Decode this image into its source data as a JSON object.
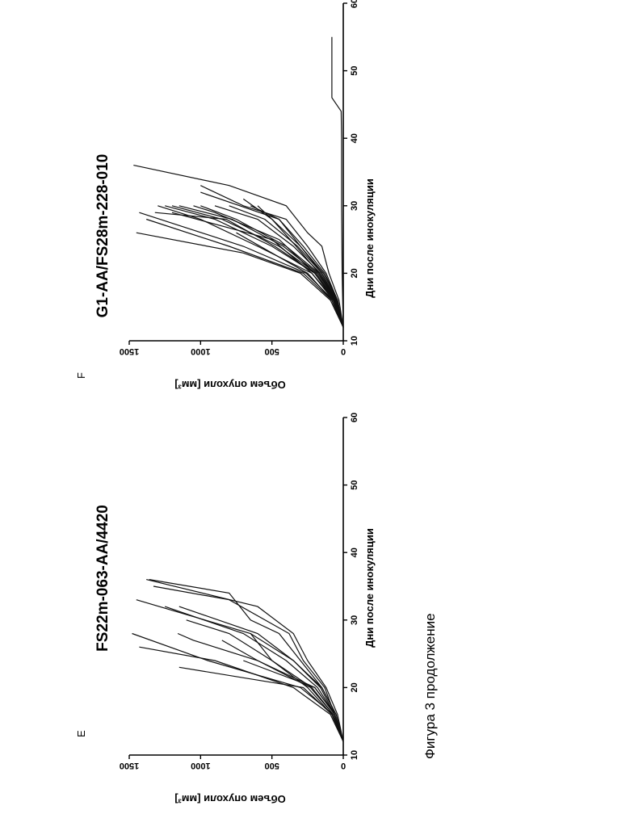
{
  "figure": {
    "caption": "Фигура 3 продолжение"
  },
  "chart_data": [
    {
      "type": "line",
      "panel_label": "E",
      "title": "FS22m-063-AA/4420",
      "xlabel": "Дни после инокуляции",
      "ylabel": "Объем опухоли [мм³]",
      "xlim": [
        10,
        60
      ],
      "ylim": [
        0,
        1500
      ],
      "xticks": [
        "10",
        "20",
        "30",
        "40",
        "50",
        "60"
      ],
      "yticks": [
        "0",
        "500",
        "1000",
        "1500"
      ],
      "grid": false,
      "series": [
        {
          "x": [
            12,
            16,
            20,
            23
          ],
          "y": [
            0,
            80,
            280,
            1150
          ]
        },
        {
          "x": [
            12,
            16,
            20,
            24,
            26
          ],
          "y": [
            0,
            90,
            350,
            900,
            1430
          ]
        },
        {
          "x": [
            12,
            16,
            20,
            24,
            28
          ],
          "y": [
            0,
            70,
            300,
            950,
            1480
          ]
        },
        {
          "x": [
            12,
            16,
            20,
            24,
            27,
            28
          ],
          "y": [
            0,
            60,
            200,
            600,
            1050,
            1160
          ]
        },
        {
          "x": [
            12,
            16,
            20,
            24,
            28,
            30
          ],
          "y": [
            0,
            70,
            220,
            500,
            800,
            1100
          ]
        },
        {
          "x": [
            12,
            16,
            20,
            24,
            28,
            32
          ],
          "y": [
            0,
            60,
            180,
            400,
            700,
            1250
          ]
        },
        {
          "x": [
            12,
            16,
            20,
            24,
            28,
            33
          ],
          "y": [
            0,
            50,
            150,
            350,
            650,
            1450
          ]
        },
        {
          "x": [
            12,
            16,
            20,
            24,
            28,
            32,
            36
          ],
          "y": [
            0,
            40,
            120,
            250,
            350,
            600,
            1380
          ]
        },
        {
          "x": [
            12,
            16,
            20,
            24,
            28,
            30,
            34,
            36
          ],
          "y": [
            0,
            50,
            150,
            300,
            450,
            650,
            800,
            1360
          ]
        },
        {
          "x": [
            12,
            16,
            20,
            24,
            28,
            33,
            35
          ],
          "y": [
            0,
            60,
            130,
            280,
            380,
            800,
            1330
          ]
        },
        {
          "x": [
            12,
            16,
            20,
            24,
            28,
            32
          ],
          "y": [
            0,
            60,
            160,
            350,
            600,
            1150
          ]
        },
        {
          "x": [
            12,
            16,
            20,
            24,
            28
          ],
          "y": [
            0,
            80,
            250,
            500,
            650
          ]
        },
        {
          "x": [
            12,
            16,
            20,
            24,
            27
          ],
          "y": [
            0,
            70,
            230,
            600,
            850
          ]
        },
        {
          "x": [
            12,
            16,
            20,
            24
          ],
          "y": [
            0,
            60,
            200,
            700
          ]
        }
      ]
    },
    {
      "type": "line",
      "panel_label": "F",
      "title": "G1-AA/FS28m-228-010",
      "xlabel": "Дни после инокуляции",
      "ylabel": "Объем опухоли [мм³]",
      "xlim": [
        10,
        60
      ],
      "ylim": [
        0,
        1500
      ],
      "xticks": [
        "10",
        "20",
        "30",
        "40",
        "50",
        "60"
      ],
      "yticks": [
        "0",
        "500",
        "1000",
        "1500"
      ],
      "grid": false,
      "series": [
        {
          "x": [
            12,
            16,
            20,
            23,
            26
          ],
          "y": [
            0,
            90,
            300,
            700,
            1450
          ]
        },
        {
          "x": [
            12,
            16,
            20,
            24,
            28
          ],
          "y": [
            0,
            80,
            280,
            800,
            1380
          ]
        },
        {
          "x": [
            12,
            16,
            20,
            24,
            29
          ],
          "y": [
            0,
            70,
            260,
            700,
            1430
          ]
        },
        {
          "x": [
            12,
            16,
            20,
            24,
            28,
            30
          ],
          "y": [
            0,
            60,
            220,
            600,
            1000,
            1300
          ]
        },
        {
          "x": [
            12,
            16,
            20,
            24,
            28,
            30
          ],
          "y": [
            0,
            60,
            200,
            500,
            900,
            1250
          ]
        },
        {
          "x": [
            12,
            16,
            20,
            24,
            28,
            30
          ],
          "y": [
            0,
            55,
            190,
            450,
            850,
            1200
          ]
        },
        {
          "x": [
            12,
            16,
            20,
            24,
            28,
            30
          ],
          "y": [
            0,
            50,
            180,
            420,
            780,
            1150
          ]
        },
        {
          "x": [
            12,
            16,
            20,
            24,
            28,
            30
          ],
          "y": [
            0,
            50,
            170,
            400,
            750,
            1000
          ]
        },
        {
          "x": [
            12,
            16,
            20,
            24,
            28,
            29
          ],
          "y": [
            0,
            60,
            200,
            480,
            820,
            1320
          ]
        },
        {
          "x": [
            12,
            16,
            20,
            24,
            28,
            30
          ],
          "y": [
            0,
            50,
            160,
            350,
            600,
            900
          ]
        },
        {
          "x": [
            12,
            16,
            20,
            24,
            28,
            30
          ],
          "y": [
            0,
            45,
            150,
            320,
            550,
            800
          ]
        },
        {
          "x": [
            12,
            16,
            20,
            24,
            28,
            31
          ],
          "y": [
            0,
            40,
            140,
            300,
            500,
            700
          ]
        },
        {
          "x": [
            12,
            16,
            20,
            24,
            28,
            30
          ],
          "y": [
            0,
            40,
            130,
            280,
            450,
            650
          ]
        },
        {
          "x": [
            12,
            16,
            20,
            24,
            26,
            30,
            33,
            36
          ],
          "y": [
            0,
            30,
            100,
            150,
            250,
            400,
            800,
            1470
          ]
        },
        {
          "x": [
            12,
            16,
            20,
            24,
            28,
            30,
            33
          ],
          "y": [
            0,
            40,
            120,
            250,
            400,
            700,
            1000
          ]
        },
        {
          "x": [
            12,
            16,
            20,
            24,
            28,
            32
          ],
          "y": [
            0,
            50,
            150,
            300,
            450,
            1000
          ]
        },
        {
          "x": [
            12,
            16,
            20,
            24,
            28,
            30
          ],
          "y": [
            0,
            60,
            170,
            330,
            500,
            600
          ]
        },
        {
          "x": [
            12,
            16,
            20,
            25,
            29
          ],
          "y": [
            0,
            70,
            220,
            500,
            1200
          ]
        },
        {
          "x": [
            12,
            16,
            20,
            25,
            29,
            30
          ],
          "y": [
            0,
            65,
            200,
            450,
            900,
            1050
          ]
        },
        {
          "x": [
            12,
            16,
            20,
            26
          ],
          "y": [
            0,
            80,
            250,
            750
          ]
        },
        {
          "x": [
            12,
            20,
            30,
            40,
            44,
            46,
            55
          ],
          "y": [
            0,
            8,
            12,
            12,
            15,
            80,
            80
          ]
        }
      ]
    }
  ]
}
